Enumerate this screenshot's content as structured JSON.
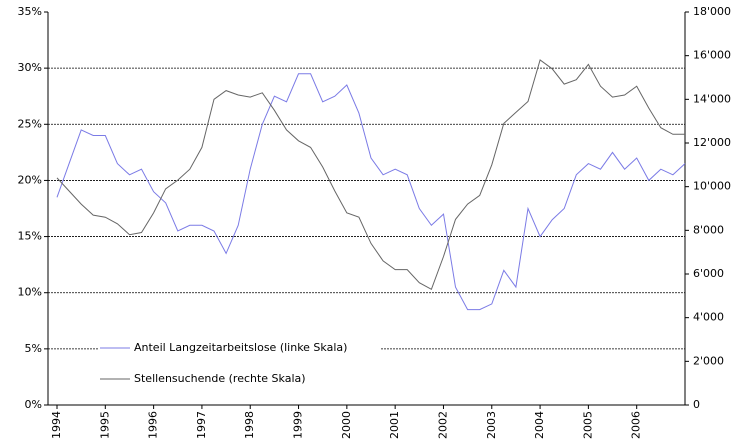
{
  "chart_data": {
    "type": "line",
    "categories": [
      "1994",
      null,
      null,
      null,
      "1995",
      null,
      null,
      null,
      "1996",
      null,
      null,
      null,
      "1997",
      null,
      null,
      null,
      "1998",
      null,
      null,
      null,
      "1999",
      null,
      null,
      null,
      "2000",
      null,
      null,
      null,
      "2001",
      null,
      null,
      null,
      "2002",
      null,
      null,
      null,
      "2003",
      null,
      null,
      null,
      "2004",
      null,
      null,
      null,
      "2005",
      null,
      null,
      null,
      "2006",
      null,
      null,
      null,
      null
    ],
    "series": [
      {
        "name": "Anteil Langzeitarbeitslose (linke Skala)",
        "color": "#7b7be6",
        "axis": "y",
        "values": [
          18.5,
          21.5,
          24.5,
          24,
          24,
          21.5,
          20.5,
          21,
          19,
          18,
          15.5,
          16,
          16,
          15.5,
          13.5,
          16,
          21,
          25,
          27.5,
          27,
          29.5,
          29.5,
          27,
          27.5,
          28.5,
          26,
          22,
          20.5,
          21,
          20.5,
          17.5,
          16,
          17,
          10.5,
          8.5,
          8.5,
          9,
          12,
          10.5,
          17.5,
          15,
          16.5,
          17.5,
          20.5,
          21.5,
          21,
          22.5,
          21,
          22,
          20,
          21,
          20.5,
          21.5
        ]
      },
      {
        "name": "Stellensuchende (rechte Skala)",
        "color": "#666666",
        "axis": "y2",
        "values": [
          10400,
          9800,
          9200,
          8700,
          8600,
          8300,
          7800,
          7900,
          8800,
          9900,
          10300,
          10800,
          11800,
          14000,
          14400,
          14200,
          14100,
          14300,
          13500,
          12600,
          12100,
          11800,
          10900,
          9800,
          8800,
          8600,
          7400,
          6600,
          6200,
          6200,
          5600,
          5300,
          6800,
          8500,
          9200,
          9600,
          11000,
          12900,
          13400,
          13900,
          15800,
          15400,
          14700,
          14900,
          15600,
          14600,
          14100,
          14200,
          14600,
          13600,
          12700,
          12400,
          12400
        ]
      }
    ],
    "ylim": [
      0,
      35
    ],
    "yticks": [
      {
        "value": 0,
        "label": "0%"
      },
      {
        "value": 5,
        "label": "5%"
      },
      {
        "value": 10,
        "label": "10%"
      },
      {
        "value": 15,
        "label": "15%"
      },
      {
        "value": 20,
        "label": "20%"
      },
      {
        "value": 25,
        "label": "25%"
      },
      {
        "value": 30,
        "label": "30%"
      },
      {
        "value": 35,
        "label": "35%"
      }
    ],
    "y2lim": [
      0,
      18000
    ],
    "y2ticks": [
      0,
      {
        "value": 2000,
        "label": "2'000"
      },
      {
        "value": 4000,
        "label": "4'000"
      },
      {
        "value": 6000,
        "label": "6'000"
      },
      {
        "value": 8000,
        "label": "8'000"
      },
      {
        "value": 10000,
        "label": "10'000"
      },
      {
        "value": 12000,
        "label": "12'000"
      },
      {
        "value": 14000,
        "label": "14'000"
      },
      {
        "value": 16000,
        "label": "16'000"
      },
      {
        "value": 18000,
        "label": "18'000"
      }
    ],
    "grid": true,
    "legend": "lower left"
  }
}
